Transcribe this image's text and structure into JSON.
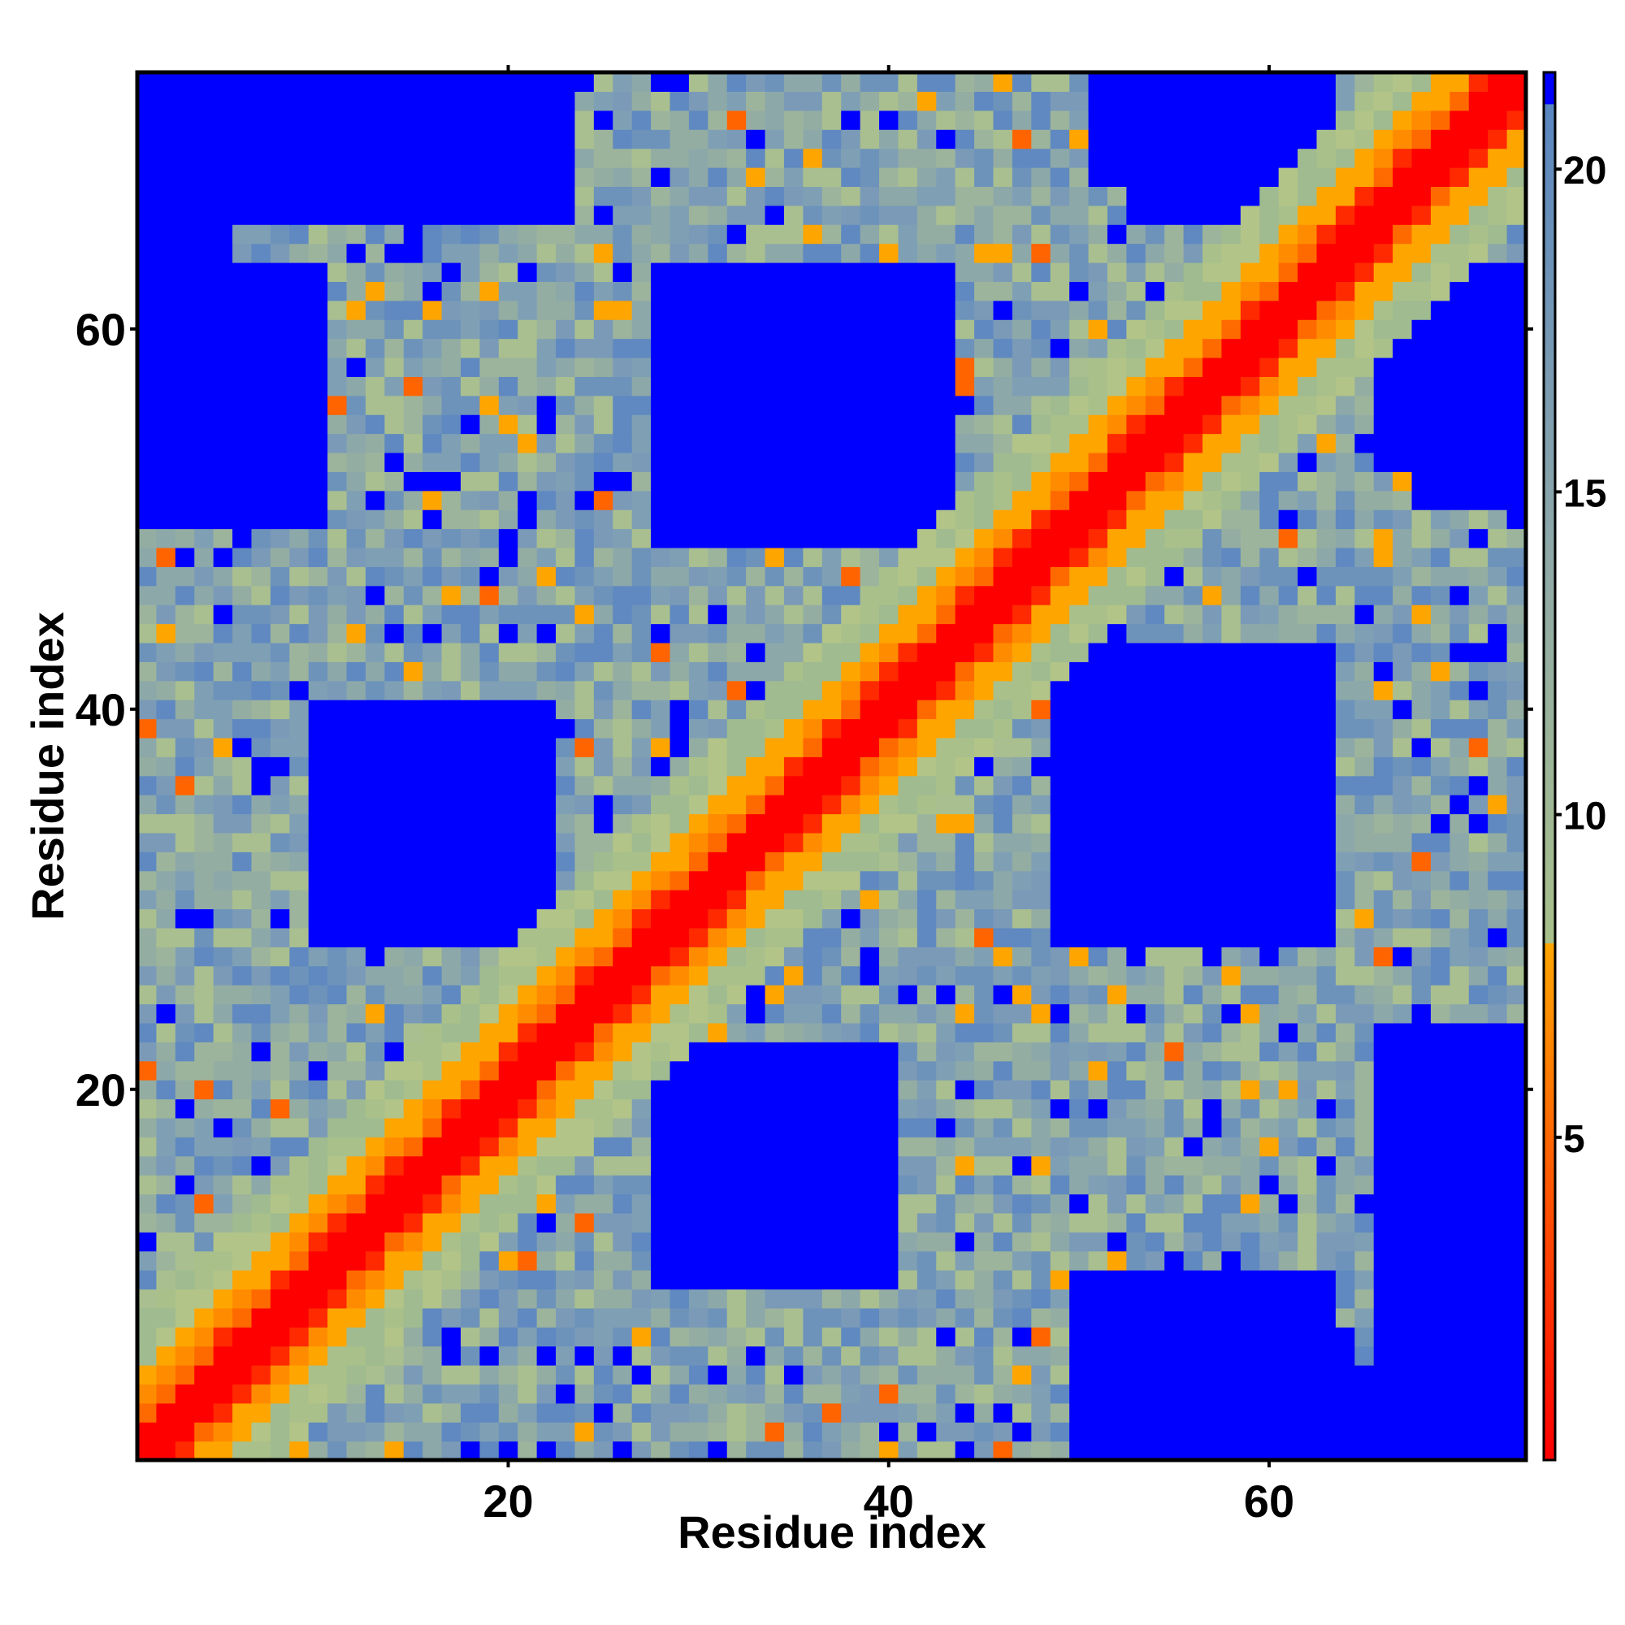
{
  "chart_data": {
    "type": "heatmap",
    "title": "",
    "xlabel": "Residue index",
    "ylabel": "Residue index",
    "x_range": [
      1,
      73
    ],
    "y_range": [
      1,
      73
    ],
    "x_ticks": [
      20,
      40,
      60
    ],
    "y_ticks": [
      20,
      40,
      60
    ],
    "colorbar": {
      "ticks": [
        5,
        10,
        15,
        20
      ],
      "range": [
        0,
        21.5
      ],
      "color_stops": [
        {
          "value": 0,
          "color": "#ff0000"
        },
        {
          "value": 8,
          "color": "#ffa500"
        },
        {
          "value": 8.01,
          "color": "#a8c08a"
        },
        {
          "value": 14,
          "color": "#8fa9a8"
        },
        {
          "value": 21,
          "color": "#5a86c0"
        },
        {
          "value": 21.01,
          "color": "#0000ff"
        }
      ]
    },
    "diagonal_band": "distance ~0 on the diagonal, rising to ~21 (saturated blue) with residue separation",
    "blue_blocks": [
      {
        "x": [
          1,
          5
        ],
        "y": [
          55,
          73
        ]
      },
      {
        "x": [
          5,
          23
        ],
        "y": [
          66,
          73
        ]
      },
      {
        "x": [
          10,
          22
        ],
        "y": [
          28,
          40
        ]
      },
      {
        "x": [
          30,
          43
        ],
        "y": [
          49,
          63
        ]
      },
      {
        "x": [
          28,
          40
        ],
        "y": [
          10,
          22
        ]
      },
      {
        "x": [
          49,
          63
        ],
        "y": [
          28,
          42
        ]
      },
      {
        "x": [
          53,
          60
        ],
        "y": [
          66,
          73
        ]
      },
      {
        "x": [
          66,
          73
        ],
        "y": [
          1,
          22
        ]
      },
      {
        "x": [
          68,
          73
        ],
        "y": [
          51,
          63
        ]
      },
      {
        "x": [
          50,
          63
        ],
        "y": [
          1,
          10
        ]
      }
    ],
    "grid": false,
    "legend": "colorbar-right"
  },
  "colors": {
    "near": "#ff0000",
    "mid": "#ffa500",
    "far": "#0000ff",
    "frame": "#000000"
  }
}
